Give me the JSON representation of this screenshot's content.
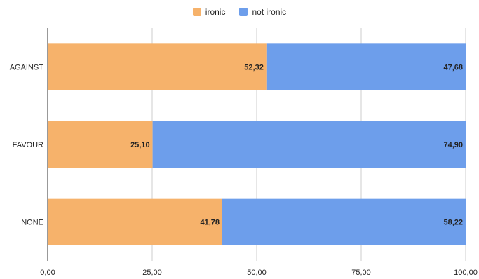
{
  "chart_data": {
    "type": "bar",
    "orientation": "horizontal",
    "stacked": true,
    "categories": [
      "AGAINST",
      "FAVOUR",
      "NONE"
    ],
    "series": [
      {
        "name": "ironic",
        "color": "#F6B26B",
        "values": [
          52.32,
          25.1,
          41.78
        ],
        "labels": [
          "52,32",
          "25,10",
          "41,78"
        ]
      },
      {
        "name": "not ironic",
        "color": "#6D9EEB",
        "values": [
          47.68,
          74.9,
          58.22
        ],
        "labels": [
          "47,68",
          "74,90",
          "58,22"
        ]
      }
    ],
    "xlim": [
      0,
      100
    ],
    "xticks": [
      0,
      25,
      50,
      75,
      100
    ],
    "xtick_labels": [
      "0,00",
      "25,00",
      "50,00",
      "75,00",
      "100,00"
    ],
    "grid": true,
    "legend_position": "top-center",
    "title": "",
    "xlabel": "",
    "ylabel": ""
  }
}
